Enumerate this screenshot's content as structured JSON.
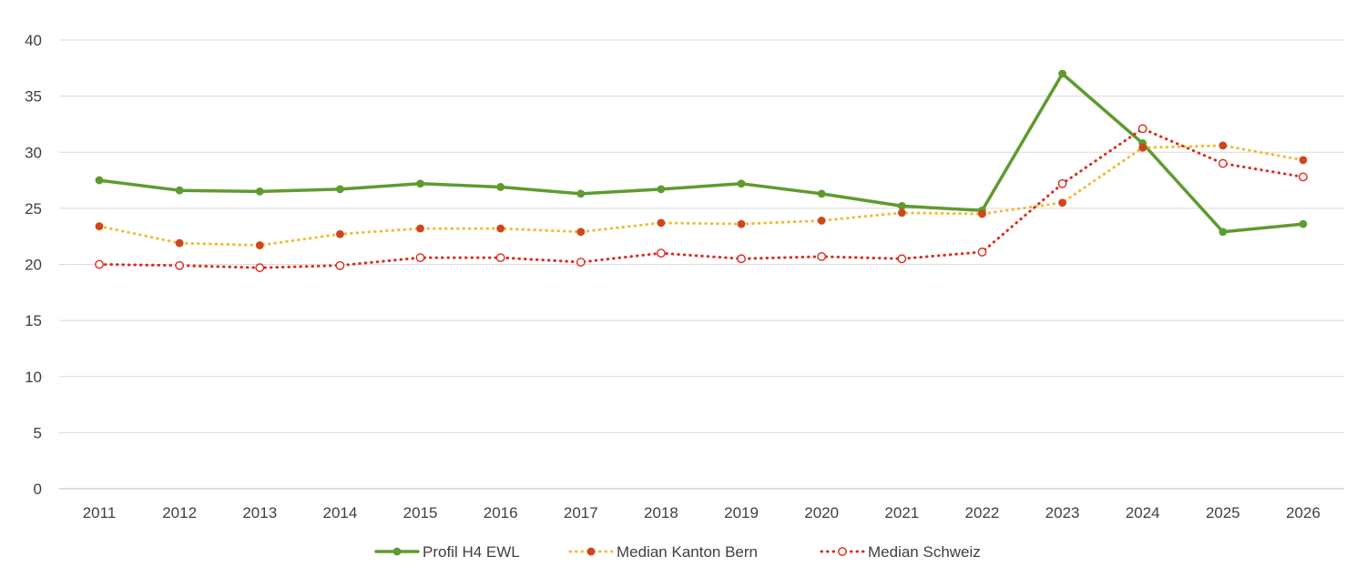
{
  "chart_data": {
    "type": "line",
    "title": "",
    "xlabel": "",
    "ylabel": "",
    "categories": [
      "2011",
      "2012",
      "2013",
      "2014",
      "2015",
      "2016",
      "2017",
      "2018",
      "2019",
      "2020",
      "2021",
      "2022",
      "2023",
      "2024",
      "2025",
      "2026"
    ],
    "ylim": [
      0,
      40
    ],
    "yticks": [
      0,
      5,
      10,
      15,
      20,
      25,
      30,
      35,
      40
    ],
    "grid": true,
    "legend_position": "bottom",
    "series": [
      {
        "name": "Profil H4 EWL",
        "color": "#5E9B2F",
        "line_style": "solid",
        "marker": "filled-circle",
        "values": [
          27.5,
          26.6,
          26.5,
          26.7,
          27.2,
          26.9,
          26.3,
          26.7,
          27.2,
          26.3,
          25.2,
          24.8,
          37.0,
          30.8,
          22.9,
          23.6
        ]
      },
      {
        "name": "Median Kanton Bern",
        "color": "#F0BB2D",
        "marker_color": "#D0461C",
        "line_style": "dotted",
        "marker": "filled-circle",
        "values": [
          23.4,
          21.9,
          21.7,
          22.7,
          23.2,
          23.2,
          22.9,
          23.7,
          23.6,
          23.9,
          24.6,
          24.5,
          25.5,
          30.4,
          30.6,
          29.3
        ]
      },
      {
        "name": "Median Schweiz",
        "color": "#DB2A1E",
        "marker_color": "#DB2A1E",
        "line_style": "dotted",
        "marker": "open-circle",
        "values": [
          20.0,
          19.9,
          19.7,
          19.9,
          20.6,
          20.6,
          20.2,
          21.0,
          20.5,
          20.7,
          20.5,
          21.1,
          27.2,
          32.1,
          29.0,
          27.8
        ]
      }
    ]
  }
}
